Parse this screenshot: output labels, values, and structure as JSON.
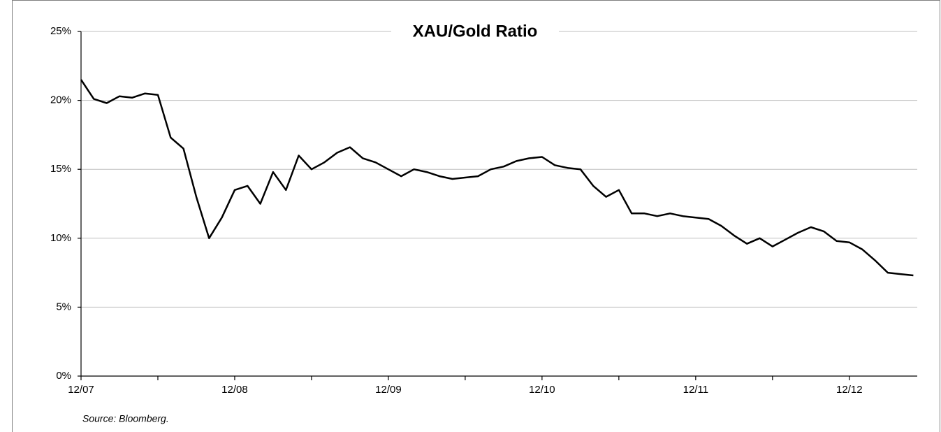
{
  "chart_data": {
    "type": "line",
    "title": "XAU/Gold Ratio",
    "source": "Source: Bloomberg.",
    "categories": [
      "12/07",
      null,
      null,
      null,
      null,
      null,
      null,
      null,
      null,
      null,
      null,
      null,
      "12/08",
      null,
      null,
      null,
      null,
      null,
      null,
      null,
      null,
      null,
      null,
      null,
      "12/09",
      null,
      null,
      null,
      null,
      null,
      null,
      null,
      null,
      null,
      null,
      null,
      "12/10",
      null,
      null,
      null,
      null,
      null,
      null,
      null,
      null,
      null,
      null,
      null,
      "12/11",
      null,
      null,
      null,
      null,
      null,
      null,
      null,
      null,
      null,
      null,
      null,
      "12/12",
      null,
      null,
      null,
      null,
      null
    ],
    "series": [
      {
        "name": "XAU/Gold",
        "color": "#000000",
        "values": [
          21.5,
          20.1,
          19.8,
          20.3,
          20.2,
          20.5,
          20.4,
          17.3,
          16.5,
          13,
          10,
          11.5,
          13.5,
          13.8,
          12.5,
          14.8,
          13.5,
          16,
          15,
          15.5,
          16.2,
          16.6,
          15.8,
          15.5,
          15,
          14.5,
          15,
          14.8,
          14.5,
          14.3,
          14.4,
          14.5,
          15,
          15.2,
          15.6,
          15.8,
          15.9,
          15.3,
          15.1,
          15,
          13.8,
          13,
          13.5,
          11.8,
          11.8,
          11.6,
          11.8,
          11.6,
          11.5,
          11.4,
          10.9,
          10.2,
          9.6,
          10,
          9.4,
          9.9,
          10.4,
          10.8,
          10.5,
          9.8,
          9.7,
          9.2,
          8.4,
          7.5,
          7.4,
          7.3
        ]
      }
    ],
    "ylim": [
      0,
      25
    ],
    "yticks": [
      {
        "value": 0,
        "label": "0%"
      },
      {
        "value": 5,
        "label": "5%"
      },
      {
        "value": 10,
        "label": "10%"
      },
      {
        "value": 15,
        "label": "15%"
      },
      {
        "value": 20,
        "label": "20%"
      },
      {
        "value": 25,
        "label": "25%"
      }
    ],
    "grid": true
  }
}
